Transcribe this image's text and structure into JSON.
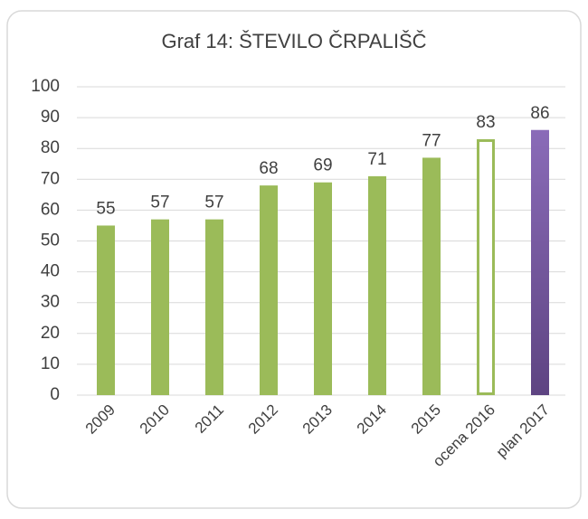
{
  "chart_data": {
    "type": "bar",
    "title": "Graf 14: ŠTEVILO ČRPALIŠČ",
    "categories": [
      "2009",
      "2010",
      "2011",
      "2012",
      "2013",
      "2014",
      "2015",
      "ocena 2016",
      "plan 2017"
    ],
    "values": [
      55,
      57,
      57,
      68,
      69,
      71,
      77,
      83,
      86
    ],
    "colors": [
      "#9bbb59",
      "#9bbb59",
      "#9bbb59",
      "#9bbb59",
      "#9bbb59",
      "#9bbb59",
      "#9bbb59",
      "#9bbb59",
      "#7b5ea7"
    ],
    "bar_styles": [
      "solid",
      "solid",
      "solid",
      "solid",
      "solid",
      "solid",
      "solid",
      "outline",
      "gradient"
    ],
    "ylim": [
      0,
      100
    ],
    "yticks": [
      0,
      10,
      20,
      30,
      40,
      50,
      60,
      70,
      80,
      90,
      100
    ],
    "grid": true
  }
}
